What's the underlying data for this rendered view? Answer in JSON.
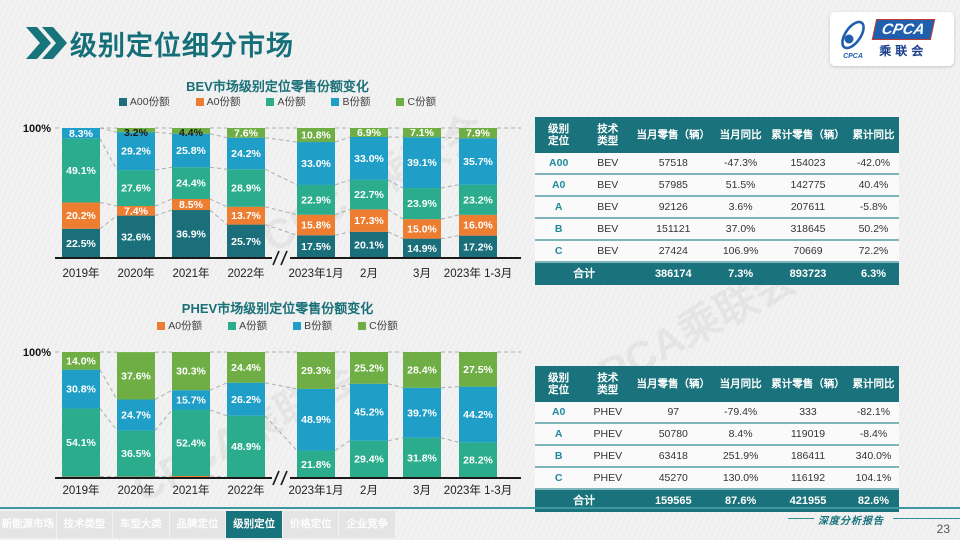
{
  "header": {
    "title": "级别定位细分市场",
    "accent_color": "#17747C"
  },
  "logo": {
    "brand": "CPCA",
    "brand_cn": "乘联会",
    "icon_caption": "CPCA"
  },
  "watermark": "CPCA乘联会",
  "chart_data": [
    {
      "type": "bar",
      "stacked": true,
      "title": "BEV市场级别定位零售份额变化",
      "y_axis_label": "100%",
      "ylim": [
        0,
        100
      ],
      "unit": "%",
      "legend_position": "top",
      "axis_break_after": "2022年",
      "categories": [
        "2019年",
        "2020年",
        "2021年",
        "2022年",
        "2023年1月",
        "2月",
        "3月",
        "2023年 1-3月"
      ],
      "colors": [
        "#1A6F7B",
        "#ED7D31",
        "#2BAD8D",
        "#1F9FC8",
        "#6FAE44"
      ],
      "series": [
        {
          "name": "A00份额",
          "values": [
            22.5,
            32.6,
            36.9,
            25.7,
            17.5,
            20.1,
            14.9,
            17.2
          ]
        },
        {
          "name": "A0份额",
          "values": [
            20.2,
            7.4,
            8.5,
            13.7,
            15.8,
            17.3,
            15.0,
            16.0
          ]
        },
        {
          "name": "A份额",
          "values": [
            49.1,
            27.6,
            24.4,
            28.9,
            22.9,
            22.7,
            23.9,
            23.2
          ]
        },
        {
          "name": "B份额",
          "values": [
            8.3,
            29.2,
            25.8,
            24.2,
            33.0,
            33.0,
            39.1,
            35.7
          ]
        },
        {
          "name": "C份额",
          "values": [
            null,
            3.2,
            4.4,
            7.6,
            10.8,
            6.9,
            7.1,
            7.9
          ]
        }
      ]
    },
    {
      "type": "bar",
      "stacked": true,
      "title": "PHEV市场级别定位零售份额变化",
      "y_axis_label": "100%",
      "ylim": [
        0,
        100
      ],
      "unit": "%",
      "legend_position": "top",
      "axis_break_after": "2022年",
      "categories": [
        "2019年",
        "2020年",
        "2021年",
        "2022年",
        "2023年1月",
        "2月",
        "3月",
        "2023年 1-3月"
      ],
      "colors": [
        "#ED7D31",
        "#2BAD8D",
        "#1F9FC8",
        "#6FAE44"
      ],
      "series": [
        {
          "name": "A0份额",
          "values": [
            1.1,
            1.1,
            1.6,
            0.5,
            0.0,
            0.2,
            0.1,
            0.1
          ]
        },
        {
          "name": "A份额",
          "values": [
            54.1,
            36.5,
            52.4,
            48.9,
            21.8,
            29.4,
            31.8,
            28.2
          ]
        },
        {
          "name": "B份额",
          "values": [
            30.8,
            24.7,
            15.7,
            26.2,
            48.9,
            45.2,
            39.7,
            44.2
          ]
        },
        {
          "name": "C份额",
          "values": [
            14.0,
            37.6,
            30.3,
            24.4,
            29.3,
            25.2,
            28.4,
            27.5
          ]
        }
      ]
    }
  ],
  "tables": [
    {
      "headers": [
        "级别定位",
        "技术类型",
        "当月零售（辆）",
        "当月同比",
        "累计零售（辆）",
        "累计同比"
      ],
      "rows": [
        [
          "A00",
          "BEV",
          "57518",
          "-47.3%",
          "154023",
          "-42.0%"
        ],
        [
          "A0",
          "BEV",
          "57985",
          "51.5%",
          "142775",
          "40.4%"
        ],
        [
          "A",
          "BEV",
          "92126",
          "3.6%",
          "207611",
          "-5.8%"
        ],
        [
          "B",
          "BEV",
          "151121",
          "37.0%",
          "318645",
          "50.2%"
        ],
        [
          "C",
          "BEV",
          "27424",
          "106.9%",
          "70669",
          "72.2%"
        ]
      ],
      "total": {
        "label": "合计",
        "values": [
          "386174",
          "7.3%",
          "893723",
          "6.3%"
        ]
      }
    },
    {
      "headers": [
        "级别定位",
        "技术类型",
        "当月零售（辆）",
        "当月同比",
        "累计零售（辆）",
        "累计同比"
      ],
      "rows": [
        [
          "A0",
          "PHEV",
          "97",
          "-79.4%",
          "333",
          "-82.1%"
        ],
        [
          "A",
          "PHEV",
          "50780",
          "8.4%",
          "119019",
          "-8.4%"
        ],
        [
          "B",
          "PHEV",
          "63418",
          "251.9%",
          "186411",
          "340.0%"
        ],
        [
          "C",
          "PHEV",
          "45270",
          "130.0%",
          "116192",
          "104.1%"
        ]
      ],
      "total": {
        "label": "合计",
        "values": [
          "159565",
          "87.6%",
          "421955",
          "82.6%"
        ]
      }
    }
  ],
  "footer": {
    "nav": [
      "新能源市场",
      "技术类型",
      "车型大类",
      "品牌定位",
      "级别定位",
      "价格定位",
      "企业竞争"
    ],
    "active_tab": "级别定位",
    "report_label": "深度分析报告",
    "page_number": "23"
  }
}
